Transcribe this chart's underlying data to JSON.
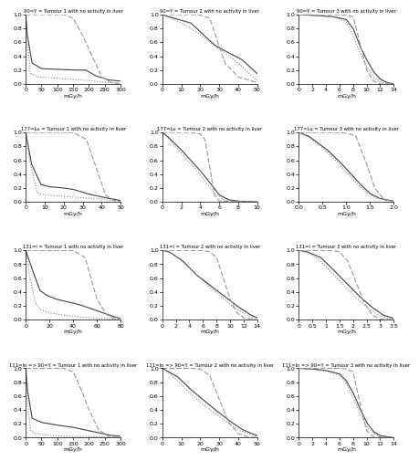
{
  "titles": [
    [
      "90=Y = Tumour 1 with no activity in liver",
      "90=Y = Tumour 2 with no activity in liver",
      "90=Y = Tumour 3 with no activity in liver"
    ],
    [
      "177=Lu = Tumour 1 with no activity in liver",
      "177=Lu = Tumour 2 with no activity in liver",
      "177=Lu = Tumour 3 with no activity in liver"
    ],
    [
      "131=I = Tumour 1 with no activity in liver",
      "131=I = Tumour 2 with no activity in liver",
      "131=I = Tumour 3 with no activity in liver"
    ],
    [
      "111=In => 90=Y = Tumour 1 with no activity in liver",
      "111=In => 90=Y = Tumour 2 with no activity in liver",
      "111=In => 90=Y = Tumour 3 with no activity in liver"
    ]
  ],
  "xlims": [
    [
      [
        0,
        300
      ],
      [
        0,
        50
      ],
      [
        0,
        14
      ]
    ],
    [
      [
        0,
        50
      ],
      [
        0,
        10
      ],
      [
        0,
        2.0
      ]
    ],
    [
      [
        0,
        80
      ],
      [
        0,
        14
      ],
      [
        0,
        3.5
      ]
    ],
    [
      [
        0,
        300
      ],
      [
        0,
        50
      ],
      [
        0,
        14
      ]
    ]
  ],
  "xticks": [
    [
      [
        0,
        50,
        100,
        150,
        200,
        250,
        300
      ],
      [
        0,
        10,
        20,
        30,
        40,
        50
      ],
      [
        0,
        2,
        4,
        6,
        8,
        10,
        12,
        14
      ]
    ],
    [
      [
        0,
        10,
        20,
        30,
        40,
        50
      ],
      [
        0,
        2,
        4,
        6,
        8,
        10
      ],
      [
        0.0,
        0.5,
        1.0,
        1.5,
        2.0
      ]
    ],
    [
      [
        0,
        20,
        40,
        60,
        80
      ],
      [
        0,
        2,
        4,
        6,
        8,
        10,
        12,
        14
      ],
      [
        0.0,
        0.5,
        1.0,
        1.5,
        2.0,
        2.5,
        3.0,
        3.5
      ]
    ],
    [
      [
        0,
        50,
        100,
        150,
        200,
        250,
        300
      ],
      [
        0,
        10,
        20,
        30,
        40,
        50
      ],
      [
        0,
        2,
        4,
        6,
        8,
        10,
        12,
        14
      ]
    ]
  ],
  "xlabel": "mGy/h",
  "ylabel_ticks": [
    0.0,
    0.2,
    0.4,
    0.6,
    0.8,
    1.0
  ],
  "colors": {
    "solid": "#444444",
    "dotted": "#888888",
    "dashed": "#999999"
  },
  "lw": 0.8
}
